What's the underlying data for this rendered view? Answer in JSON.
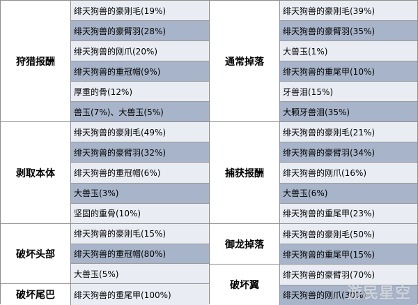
{
  "left": [
    {
      "label": "狩猎报酬",
      "items": [
        "绯天狗兽的豪刚毛(19%)",
        "绯天狗兽的豪臂羽(28%)",
        "绯天狗兽的刚爪(20%)",
        "绯天狗兽的重冠帽(9%)",
        "厚重的骨(12%)",
        "兽玉(7%)、大兽玉(5%)"
      ]
    },
    {
      "label": "剥取本体",
      "items": [
        "绯天狗兽的豪刚毛(49%)",
        "绯天狗兽的豪臂羽(32%)",
        "绯天狗兽的重冠帽(6%)",
        "大兽玉(3%)",
        "坚固的重骨(10%)"
      ]
    },
    {
      "label": "破坏头部",
      "items": [
        "绯天狗兽的豪刚毛(15%)",
        "绯天狗兽的重冠帽(80%)",
        "大兽玉(5%)"
      ]
    },
    {
      "label": "破坏尾巴",
      "items": [
        "绯天狗兽的重尾甲(100%)"
      ]
    }
  ],
  "right": [
    {
      "label": "通常掉落",
      "items": [
        "绯天狗兽的豪刚毛(39%)",
        "绯天狗兽的豪臂羽(35%)",
        "大兽玉(1%)",
        "绯天狗兽的重尾甲(10%)",
        "牙兽泪(15%)",
        "大颗牙兽泪(35%)"
      ]
    },
    {
      "label": "捕获报酬",
      "items": [
        "绯天狗兽的豪刚毛(21%)",
        "绯天狗兽的豪臂羽(34%)",
        "绯天狗兽的刚爪(16%)",
        "大兽玉(6%)",
        "绯天狗兽的重尾甲(23%)"
      ]
    },
    {
      "label": "御龙掉落",
      "items": [
        "绯天狗兽的豪刚毛(50%)",
        "绯天狗兽的重尾甲(15%)"
      ]
    },
    {
      "label": "破坏翼",
      "items": [
        "绯天狗兽的豪臂羽(70%)",
        "绯天狗兽的刚爪(30%)"
      ]
    }
  ],
  "watermark": "游民星空"
}
